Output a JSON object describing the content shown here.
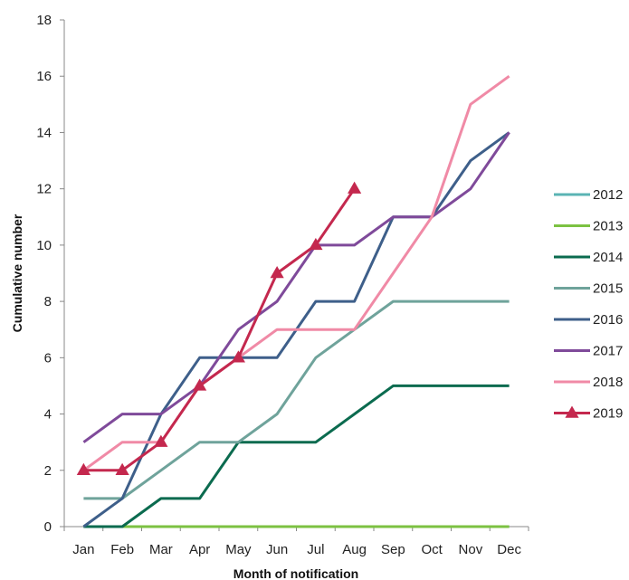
{
  "chart_data": {
    "type": "line",
    "title": "",
    "xlabel": "Month of notification",
    "ylabel": "Cumulative number",
    "categories": [
      "Jan",
      "Feb",
      "Mar",
      "Apr",
      "May",
      "Jun",
      "Jul",
      "Aug",
      "Sep",
      "Oct",
      "Nov",
      "Dec"
    ],
    "ylim": [
      0,
      18
    ],
    "yticks": [
      0,
      2,
      4,
      6,
      8,
      10,
      12,
      14,
      16,
      18
    ],
    "grid": false,
    "legend_position": "right",
    "series": [
      {
        "name": "2012",
        "color": "#5ab4b4",
        "marker": "none",
        "values": [
          0,
          0,
          0,
          0,
          0,
          0,
          0,
          0,
          0,
          0,
          0,
          0
        ]
      },
      {
        "name": "2013",
        "color": "#7cc242",
        "marker": "none",
        "values": [
          0,
          0,
          0,
          0,
          0,
          0,
          0,
          0,
          0,
          0,
          0,
          0
        ]
      },
      {
        "name": "2014",
        "color": "#0b6b4f",
        "marker": "none",
        "values": [
          0,
          0,
          1,
          1,
          3,
          3,
          3,
          4,
          5,
          5,
          5,
          5
        ]
      },
      {
        "name": "2015",
        "color": "#6fa39b",
        "marker": "none",
        "values": [
          1,
          1,
          2,
          3,
          3,
          4,
          6,
          7,
          8,
          8,
          8,
          8
        ]
      },
      {
        "name": "2016",
        "color": "#3e5f8a",
        "marker": "none",
        "values": [
          0,
          1,
          4,
          6,
          6,
          6,
          8,
          8,
          11,
          11,
          13,
          14
        ]
      },
      {
        "name": "2017",
        "color": "#7f4a9a",
        "marker": "none",
        "values": [
          3,
          4,
          4,
          5,
          7,
          8,
          10,
          10,
          11,
          11,
          12,
          14
        ]
      },
      {
        "name": "2018",
        "color": "#f08aa6",
        "marker": "none",
        "values": [
          2,
          3,
          3,
          5,
          6,
          7,
          7,
          7,
          9,
          11,
          15,
          16
        ]
      },
      {
        "name": "2019",
        "color": "#c4284e",
        "marker": "triangle",
        "values": [
          2,
          2,
          3,
          5,
          6,
          9,
          10,
          12,
          null,
          null,
          null,
          null
        ]
      }
    ]
  }
}
